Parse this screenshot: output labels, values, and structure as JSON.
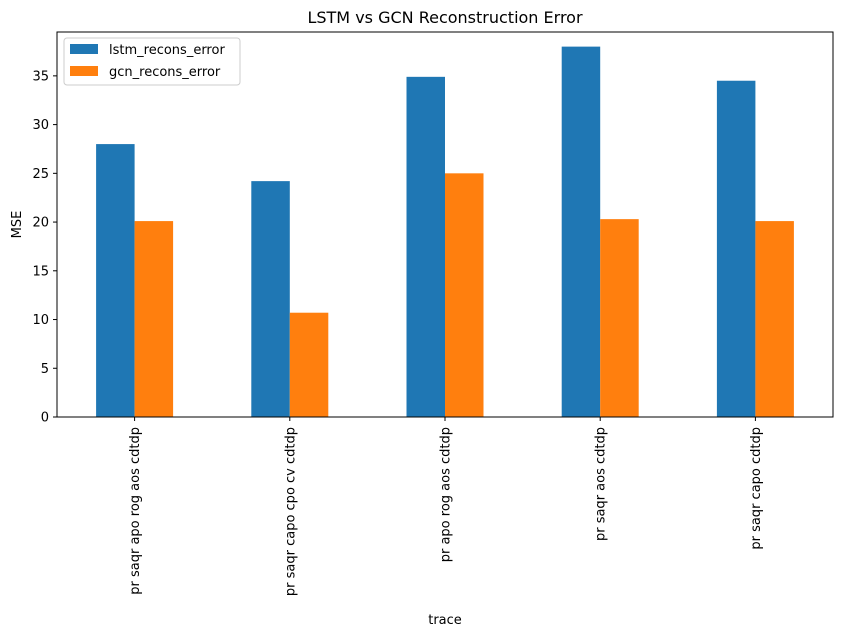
{
  "chart_data": {
    "type": "bar",
    "title": "LSTM vs GCN Reconstruction Error",
    "xlabel": "trace",
    "ylabel": "MSE",
    "ylim": [
      0,
      39.5
    ],
    "yticks": [
      0,
      5,
      10,
      15,
      20,
      25,
      30,
      35
    ],
    "grid": false,
    "legend_position": "upper-left",
    "categories": [
      "pr saqr apo rog aos cdtdp",
      "pr saqr capo cpo cv cdtdp",
      "pr apo rog aos cdtdp",
      "pr saqr aos cdtdp",
      "pr saqr capo cdtdp"
    ],
    "series": [
      {
        "name": "lstm_recons_error",
        "color": "#1f77b4",
        "values": [
          28.0,
          24.2,
          34.9,
          38.0,
          34.5
        ]
      },
      {
        "name": "gcn_recons_error",
        "color": "#ff7f0e",
        "values": [
          20.1,
          10.7,
          25.0,
          20.3,
          20.1
        ]
      }
    ]
  }
}
